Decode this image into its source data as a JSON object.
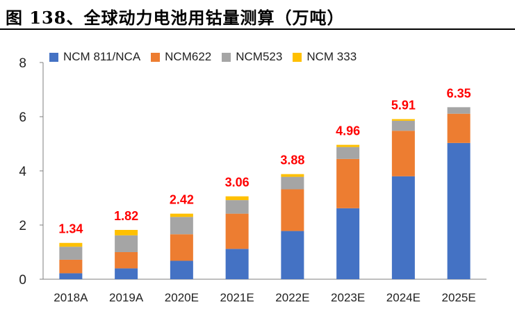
{
  "title": "图 138、全球动力电池用钴量测算（万吨）",
  "chart_data": {
    "type": "bar",
    "stacked": true,
    "categories": [
      "2018A",
      "2019A",
      "2020E",
      "2021E",
      "2022E",
      "2023E",
      "2024E",
      "2025E"
    ],
    "series": [
      {
        "name": "NCM 811/NCA",
        "color": "#4472C4",
        "values": [
          0.22,
          0.4,
          0.68,
          1.12,
          1.78,
          2.62,
          3.8,
          5.03
        ]
      },
      {
        "name": "NCM622",
        "color": "#ED7D31",
        "values": [
          0.5,
          0.6,
          0.98,
          1.3,
          1.54,
          1.82,
          1.68,
          1.08
        ]
      },
      {
        "name": "NCM523",
        "color": "#A5A5A5",
        "values": [
          0.48,
          0.62,
          0.64,
          0.5,
          0.46,
          0.44,
          0.37,
          0.24
        ]
      },
      {
        "name": "NCM 333",
        "color": "#FFC000",
        "values": [
          0.14,
          0.2,
          0.12,
          0.14,
          0.1,
          0.08,
          0.06,
          0.0
        ]
      }
    ],
    "totals": [
      "1.34",
      "1.82",
      "2.42",
      "3.06",
      "3.88",
      "4.96",
      "5.91",
      "6.35"
    ],
    "total_label_color": "#FF0000",
    "ylim": [
      0,
      8
    ],
    "yticks": [
      "0",
      "2",
      "4",
      "6",
      "8"
    ],
    "grid": false,
    "legend_position": "top"
  }
}
